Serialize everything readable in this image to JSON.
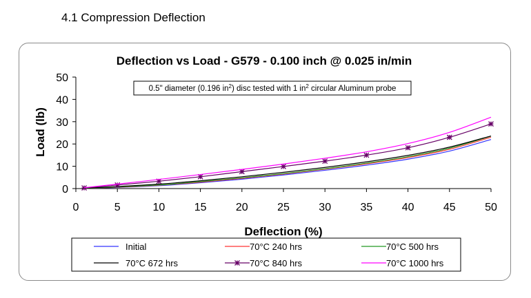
{
  "section": {
    "heading": "4.1 Compression Deflection"
  },
  "chart_data": {
    "type": "line",
    "title": "Deflection vs Load -    G579 - 0.100 inch @ 0.025 in/min",
    "annotation": {
      "part1": "0.5\" diameter (0.196 in",
      "sup1": "2",
      "part2": ") disc tested with 1 in",
      "sup2": "2",
      "part3": " circular Aluminum probe"
    },
    "xlabel": "Deflection (%)",
    "ylabel": "Load (lb)",
    "xlim": [
      0,
      50
    ],
    "ylim": [
      0,
      50
    ],
    "xticks": [
      0,
      5,
      10,
      15,
      20,
      25,
      30,
      35,
      40,
      45,
      50
    ],
    "yticks": [
      0,
      10,
      20,
      30,
      40,
      50
    ],
    "x": [
      1,
      5,
      10,
      15,
      20,
      25,
      30,
      35,
      40,
      45,
      50
    ],
    "legend_position": "bottom",
    "series": [
      {
        "name": "Initial",
        "color": "#3333ff",
        "marker": "none",
        "values": [
          0.1,
          0.5,
          1.3,
          2.6,
          4.2,
          6.1,
          8.2,
          10.5,
          13.2,
          16.8,
          22.0
        ]
      },
      {
        "name": "70°C 240 hrs",
        "color": "#ff3333",
        "marker": "none",
        "values": [
          0.1,
          0.6,
          1.5,
          2.9,
          4.6,
          6.5,
          8.7,
          11.1,
          13.9,
          17.6,
          23.0
        ]
      },
      {
        "name": "70°C 500 hrs",
        "color": "#229922",
        "marker": "none",
        "values": [
          0.1,
          0.7,
          1.6,
          3.1,
          4.8,
          6.7,
          8.9,
          11.4,
          14.3,
          18.1,
          23.5
        ]
      },
      {
        "name": "70°C 672 hrs",
        "color": "#000000",
        "marker": "none",
        "values": [
          0.2,
          0.9,
          2.0,
          3.5,
          5.3,
          7.3,
          9.5,
          12.0,
          14.9,
          18.6,
          23.6
        ]
      },
      {
        "name": "70°C 840 hrs",
        "color": "#660066",
        "marker": "asterisk",
        "values": [
          0.3,
          1.6,
          3.3,
          5.3,
          7.6,
          9.9,
          12.3,
          15.0,
          18.3,
          23.0,
          29.0
        ]
      },
      {
        "name": "70°C 1000 hrs",
        "color": "#ff00ff",
        "marker": "none",
        "values": [
          0.4,
          2.0,
          4.1,
          6.3,
          8.6,
          11.0,
          13.6,
          16.5,
          20.2,
          25.2,
          32.0
        ]
      }
    ]
  }
}
